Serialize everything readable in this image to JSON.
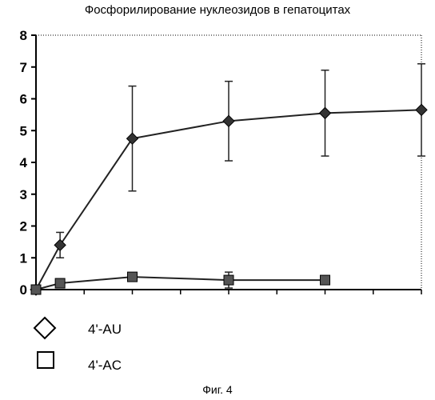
{
  "chart_data": {
    "type": "line",
    "title": "Фосфорилирование нуклеозидов в гепатоцитах",
    "xlabel": "",
    "ylabel": "",
    "ylim": [
      0,
      8
    ],
    "xlim": [
      0,
      8
    ],
    "yticks": [
      "0",
      "1",
      "2",
      "3",
      "4",
      "5",
      "6",
      "7",
      "8"
    ],
    "grid": false,
    "series": [
      {
        "name": "4'-AU",
        "marker": "diamond",
        "x": [
          0,
          0.5,
          2,
          4,
          6,
          8
        ],
        "y": [
          0,
          1.4,
          4.75,
          5.3,
          5.55,
          5.65
        ],
        "err": [
          0,
          0.4,
          1.65,
          1.25,
          1.35,
          1.45
        ]
      },
      {
        "name": "4'-AC",
        "marker": "square",
        "x": [
          0,
          0.5,
          2,
          4,
          6
        ],
        "y": [
          0,
          0.2,
          0.4,
          0.3,
          0.3
        ],
        "err": [
          0,
          0.05,
          0.1,
          0.25,
          0.1
        ]
      }
    ]
  },
  "legend": [
    {
      "label": "4'-AU",
      "marker": "diamond"
    },
    {
      "label": "4'-AC",
      "marker": "square"
    }
  ],
  "caption": "Фиг. 4"
}
